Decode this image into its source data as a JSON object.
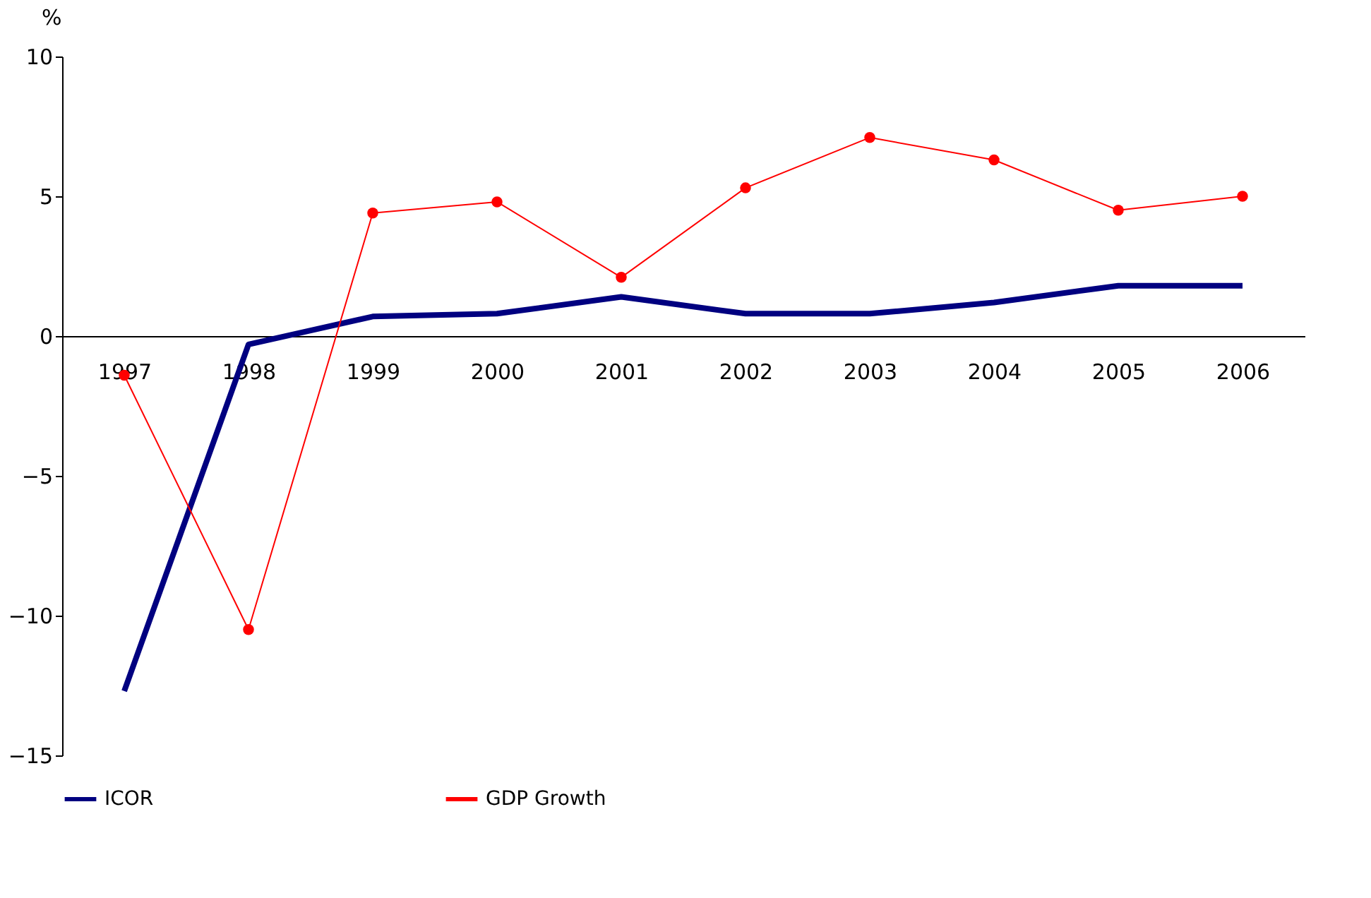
{
  "chart_data": {
    "type": "line",
    "ylabel": "%",
    "categories": [
      "1997",
      "1998",
      "1999",
      "2000",
      "2001",
      "2002",
      "2003",
      "2004",
      "2005",
      "2006"
    ],
    "series": [
      {
        "name": "ICOR",
        "color": "#000080",
        "marker": "none",
        "values": [
          -12.7,
          -0.3,
          0.7,
          0.8,
          1.4,
          0.8,
          0.8,
          1.2,
          1.8,
          1.8
        ]
      },
      {
        "name": "GDP Growth",
        "color": "#ff0000",
        "marker": "circle",
        "values": [
          -1.4,
          -10.5,
          4.4,
          4.8,
          2.1,
          5.3,
          7.1,
          6.3,
          4.5,
          5.0
        ]
      }
    ],
    "ylim": [
      -15,
      10
    ],
    "yticks": [
      -15,
      -10,
      -5,
      0,
      5,
      10
    ],
    "grid": false,
    "legend": "bottom"
  }
}
